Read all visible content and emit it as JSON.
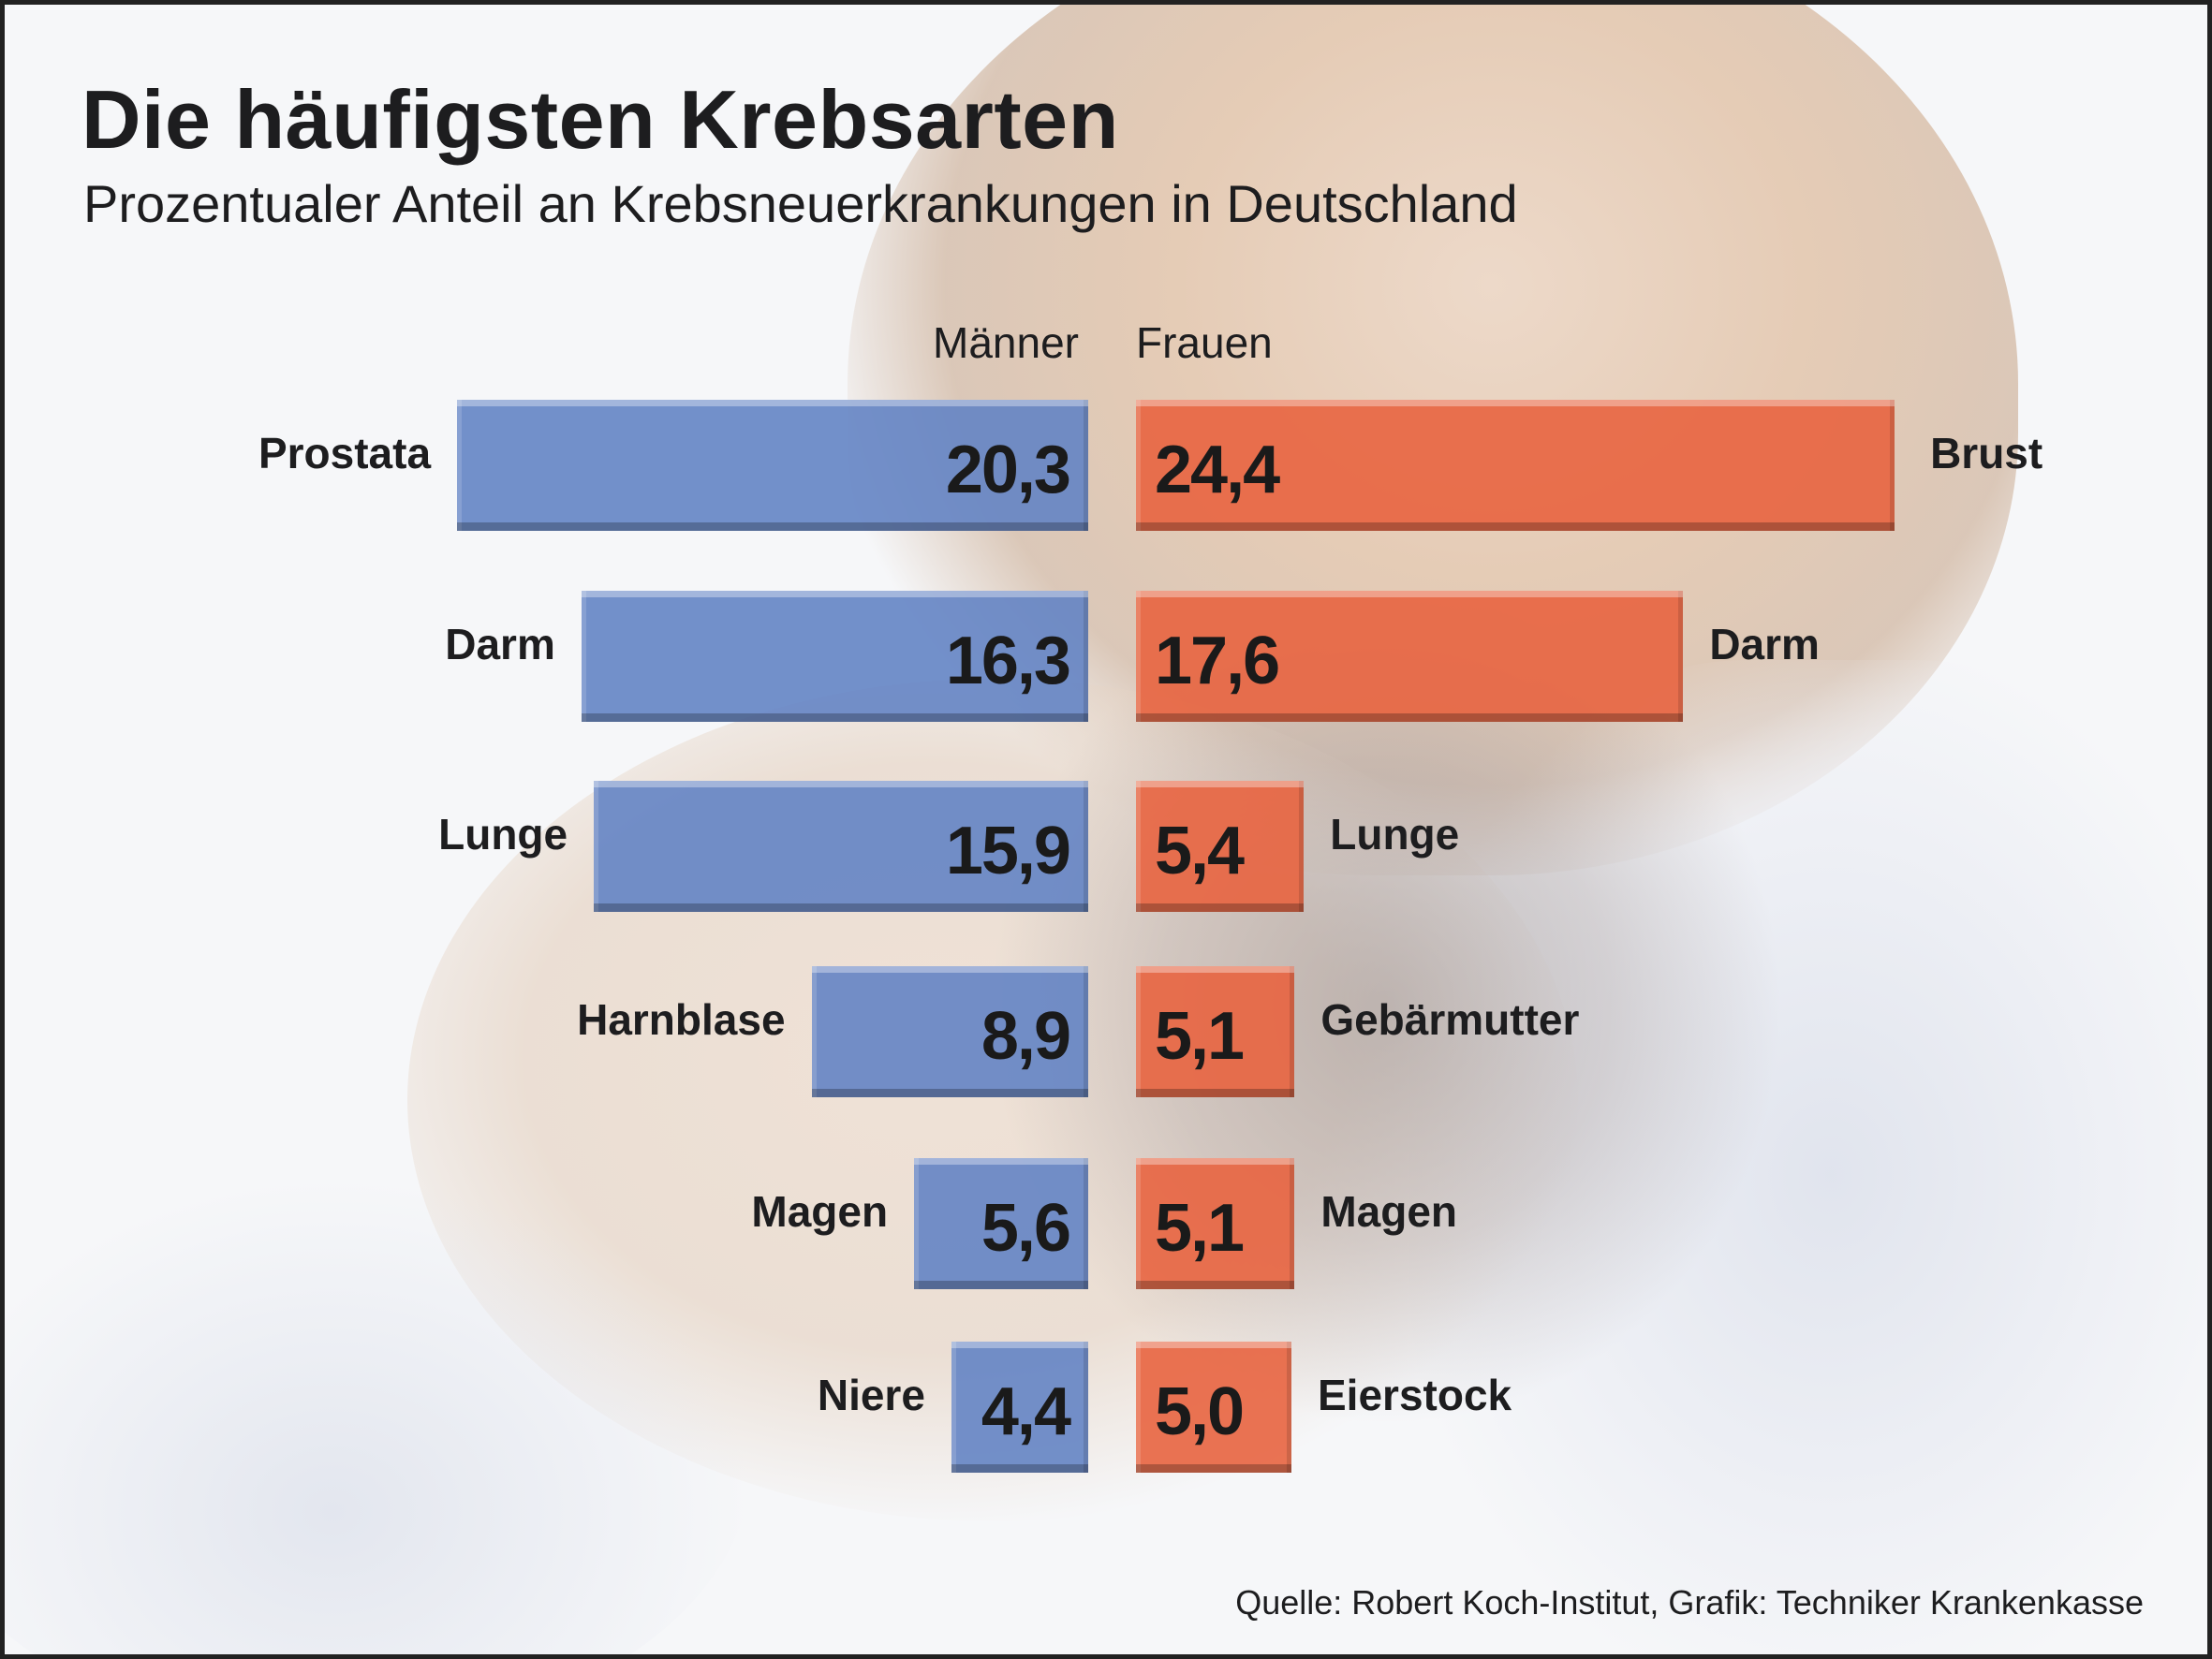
{
  "header": {
    "title": "Die häufigsten Krebsarten",
    "subtitle": "Prozentualer Anteil an Krebsneuerkrankungen in Deutschland"
  },
  "footer": {
    "credit": "Quelle: Robert Koch-Institut, Grafik: Techniker Krankenkasse"
  },
  "colors": {
    "men": "#6f8ec8",
    "women": "#e8704f",
    "text": "#1d1d1f"
  },
  "chart_data": {
    "type": "bar",
    "orientation": "horizontal-butterfly",
    "title": "Die häufigsten Krebsarten",
    "subtitle": "Prozentualer Anteil an Krebsneuerkrankungen in Deutschland",
    "unit": "%",
    "decimal_separator": ",",
    "series": [
      {
        "name": "Männer",
        "side": "left",
        "categories": [
          "Prostata",
          "Darm",
          "Lunge",
          "Harnblase",
          "Magen",
          "Niere"
        ],
        "values": [
          20.3,
          16.3,
          15.9,
          8.9,
          5.6,
          4.4
        ],
        "labels": [
          "20,3",
          "16,3",
          "15,9",
          "8,9",
          "5,6",
          "4,4"
        ]
      },
      {
        "name": "Frauen",
        "side": "right",
        "categories": [
          "Brust",
          "Darm",
          "Lunge",
          "Gebärmutter",
          "Magen",
          "Eierstock"
        ],
        "values": [
          24.4,
          17.6,
          5.4,
          5.1,
          5.1,
          5.0
        ],
        "labels": [
          "24,4",
          "17,6",
          "5,4",
          "5,1",
          "5,1",
          "5,0"
        ]
      }
    ],
    "legend": "column headers above bars",
    "grid": false,
    "source": "Quelle: Robert Koch-Institut, Grafik: Techniker Krankenkasse"
  }
}
